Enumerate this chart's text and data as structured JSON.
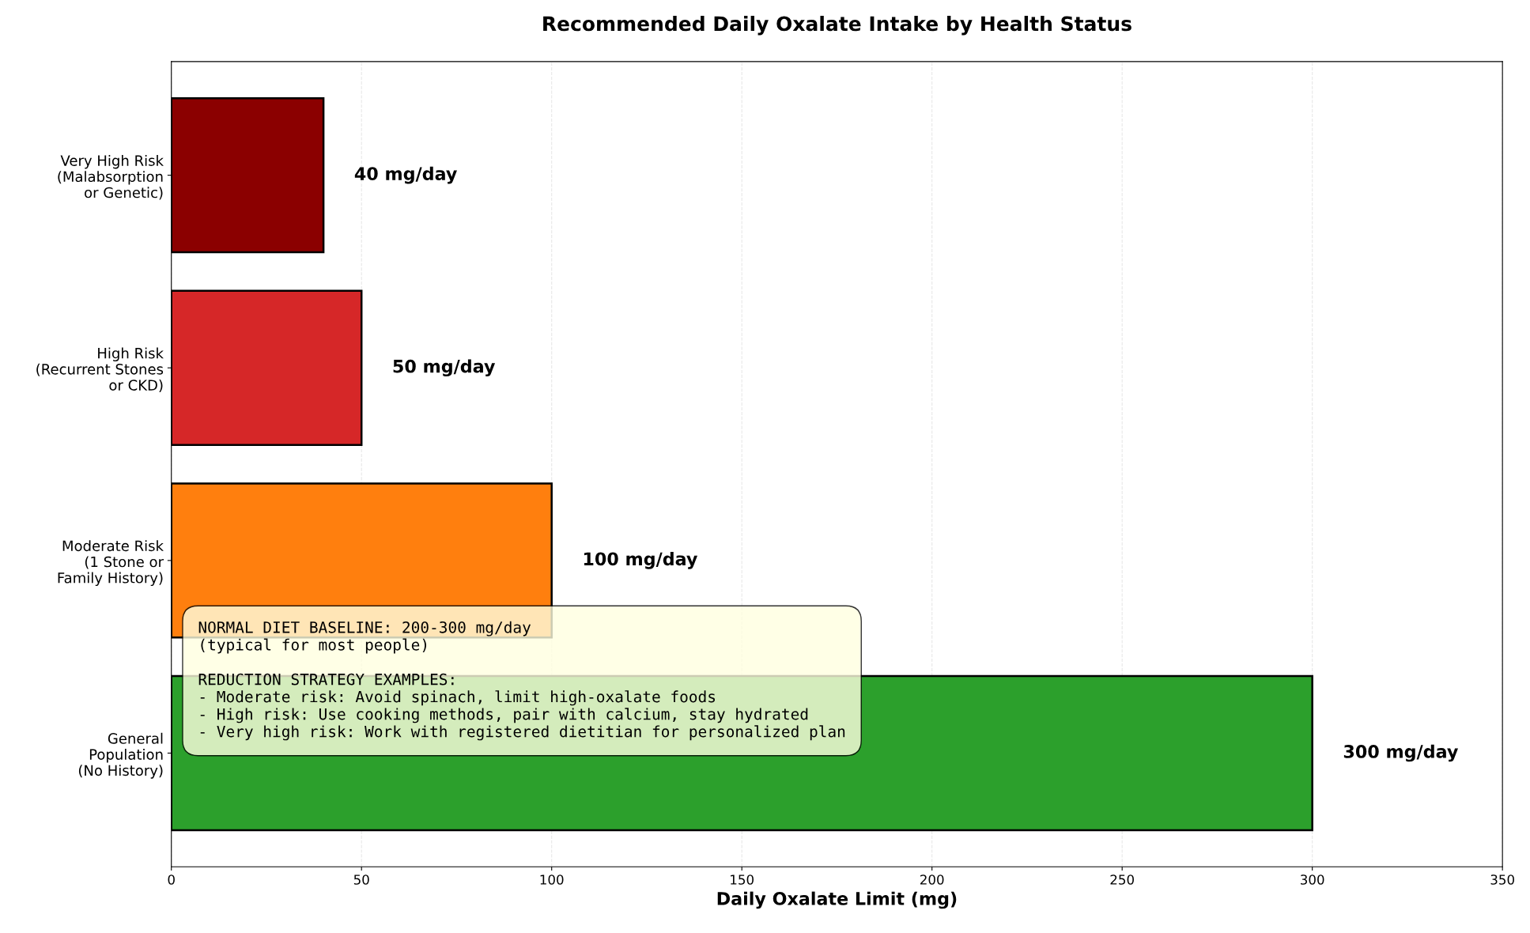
{
  "chart_data": {
    "type": "bar",
    "orientation": "horizontal",
    "title": "Recommended Daily Oxalate Intake by Health Status",
    "xlabel": "Daily Oxalate Limit (mg)",
    "categories": [
      "Very High Risk\n(Malabsorption\nor Genetic)",
      "High Risk\n(Recurrent Stones\nor CKD)",
      "Moderate Risk\n(1 Stone or\nFamily History)",
      "General\nPopulation\n(No History)"
    ],
    "values": [
      40,
      50,
      100,
      300
    ],
    "colors": [
      "#8b0000",
      "#d62728",
      "#ff7f0e",
      "#2ca02c"
    ],
    "value_labels": [
      "40 mg/day",
      "50 mg/day",
      "100 mg/day",
      "300 mg/day"
    ],
    "xlim": [
      0,
      350
    ],
    "xticks": [
      0,
      50,
      100,
      150,
      200,
      250,
      300,
      350
    ],
    "grid": "x",
    "annotations": [
      "NORMAL DIET BASELINE: 200-300 mg/day\n(typical for most people)\n\nREDUCTION STRATEGY EXAMPLES:\n- Moderate risk: Avoid spinach, limit high-oxalate foods\n- High risk: Use cooking methods, pair with calcium, stay hydrated\n- Very high risk: Work with registered dietitian for personalized plan"
    ]
  }
}
